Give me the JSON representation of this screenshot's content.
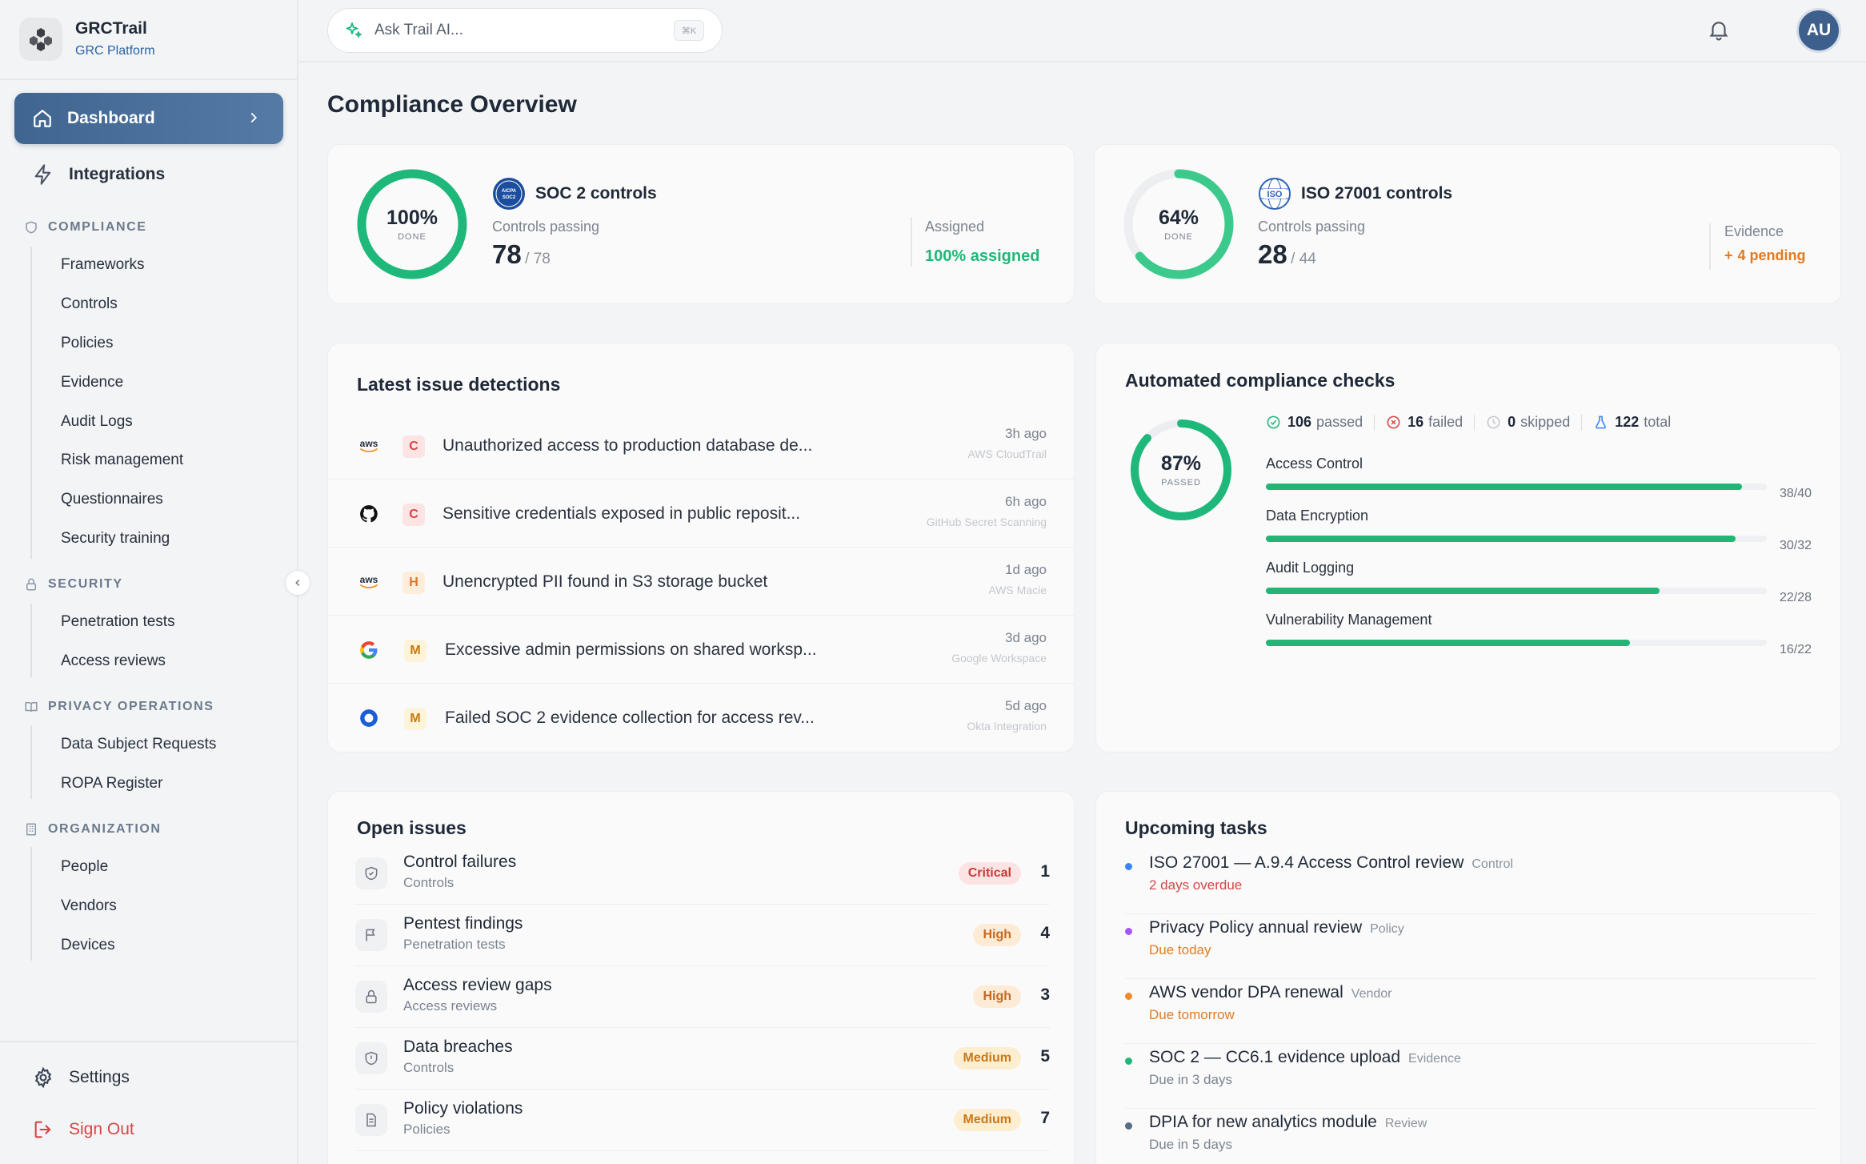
{
  "brand": {
    "name": "GRCTrail",
    "subtitle": "GRC Platform"
  },
  "nav": {
    "dashboard": "Dashboard",
    "integrations": "Integrations",
    "sections": [
      {
        "title": "COMPLIANCE",
        "items": [
          "Frameworks",
          "Controls",
          "Policies",
          "Evidence",
          "Audit Logs",
          "Risk management",
          "Questionnaires",
          "Security training"
        ]
      },
      {
        "title": "SECURITY",
        "items": [
          "Penetration tests",
          "Access reviews"
        ]
      },
      {
        "title": "PRIVACY OPERATIONS",
        "items": [
          "Data Subject Requests",
          "ROPA Register"
        ]
      },
      {
        "title": "ORGANIZATION",
        "items": [
          "People",
          "Vendors",
          "Devices"
        ]
      }
    ],
    "settings": "Settings",
    "sign_out": "Sign Out"
  },
  "topbar": {
    "search_placeholder": "Ask Trail AI...",
    "shortcut": "⌘K",
    "avatar_initials": "AU"
  },
  "page_title": "Compliance Overview",
  "frameworks": [
    {
      "name": "SOC 2 controls",
      "badge": "AICPA SOC2",
      "percent_label": "100%",
      "percent": 100,
      "ring_label": "DONE",
      "passing_label": "Controls passing",
      "passing": "78",
      "total": "/ 78",
      "side_label": "Assigned",
      "side_value": "100% assigned",
      "ring_color": "#1db87a"
    },
    {
      "name": "ISO 27001 controls",
      "badge": "ISO",
      "percent_label": "64%",
      "percent": 64,
      "ring_label": "DONE",
      "passing_label": "Controls passing",
      "passing": "28",
      "total": "/ 44",
      "side_label": "Evidence",
      "side_value": "4 pending",
      "side_icon": "+",
      "ring_color": "#3cc98c"
    }
  ],
  "detections": {
    "title": "Latest issue detections",
    "items": [
      {
        "logo": "aws",
        "severity": "C",
        "text": "Unauthorized access to production database de...",
        "time": "3h ago",
        "source": "AWS CloudTrail"
      },
      {
        "logo": "github",
        "severity": "C",
        "text": "Sensitive credentials exposed in public reposit...",
        "time": "6h ago",
        "source": "GitHub Secret Scanning"
      },
      {
        "logo": "aws",
        "severity": "H",
        "text": "Unencrypted PII found in S3 storage bucket",
        "time": "1d ago",
        "source": "AWS Macie"
      },
      {
        "logo": "google",
        "severity": "M",
        "text": "Excessive admin permissions on shared worksp...",
        "time": "3d ago",
        "source": "Google Workspace"
      },
      {
        "logo": "okta",
        "severity": "M",
        "text": "Failed SOC 2 evidence collection for access rev...",
        "time": "5d ago",
        "source": "Okta Integration"
      }
    ]
  },
  "checks": {
    "title": "Automated compliance checks",
    "percent_label": "87%",
    "percent": 87,
    "ring_label": "PASSED",
    "passed": "106",
    "passed_label": "passed",
    "failed": "16",
    "failed_label": "failed",
    "skipped": "0",
    "skipped_label": "skipped",
    "total": "122",
    "total_label": "total",
    "bars": [
      {
        "label": "Access Control",
        "count": "38/40",
        "value": 38,
        "max": 40
      },
      {
        "label": "Data Encryption",
        "count": "30/32",
        "value": 30,
        "max": 32
      },
      {
        "label": "Audit Logging",
        "count": "22/28",
        "value": 22,
        "max": 28
      },
      {
        "label": "Vulnerability Management",
        "count": "16/22",
        "value": 16,
        "max": 22
      }
    ]
  },
  "open_issues": {
    "title": "Open issues",
    "items": [
      {
        "icon": "shield-check-icon",
        "title": "Control failures",
        "sub": "Controls",
        "level": "Critical",
        "count": "1"
      },
      {
        "icon": "flag-icon",
        "title": "Pentest findings",
        "sub": "Penetration tests",
        "level": "High",
        "count": "4"
      },
      {
        "icon": "lock-icon",
        "title": "Access review gaps",
        "sub": "Access reviews",
        "level": "High",
        "count": "3"
      },
      {
        "icon": "shield-alert-icon",
        "title": "Data breaches",
        "sub": "Controls",
        "level": "Medium",
        "count": "5"
      },
      {
        "icon": "document-icon",
        "title": "Policy violations",
        "sub": "Policies",
        "level": "Medium",
        "count": "7"
      }
    ]
  },
  "tasks": {
    "title": "Upcoming tasks",
    "items": [
      {
        "title": "ISO 27001 — A.9.4 Access Control review",
        "tag": "Control",
        "due": "2 days overdue",
        "dot": "#3b82f6",
        "due_color": "#d64545"
      },
      {
        "title": "Privacy Policy annual review",
        "tag": "Policy",
        "due": "Due today",
        "dot": "#a855f7",
        "due_color": "#e07b22"
      },
      {
        "title": "AWS vendor DPA renewal",
        "tag": "Vendor",
        "due": "Due tomorrow",
        "dot": "#f08a2a",
        "due_color": "#e07b22"
      },
      {
        "title": "SOC 2 — CC6.1 evidence upload",
        "tag": "Evidence",
        "due": "Due in 3 days",
        "dot": "#1db87a",
        "due_color": "#7b8490"
      },
      {
        "title": "DPIA for new analytics module",
        "tag": "Review",
        "due": "Due in 5 days",
        "dot": "#5b6b82",
        "due_color": "#7b8490"
      }
    ]
  }
}
